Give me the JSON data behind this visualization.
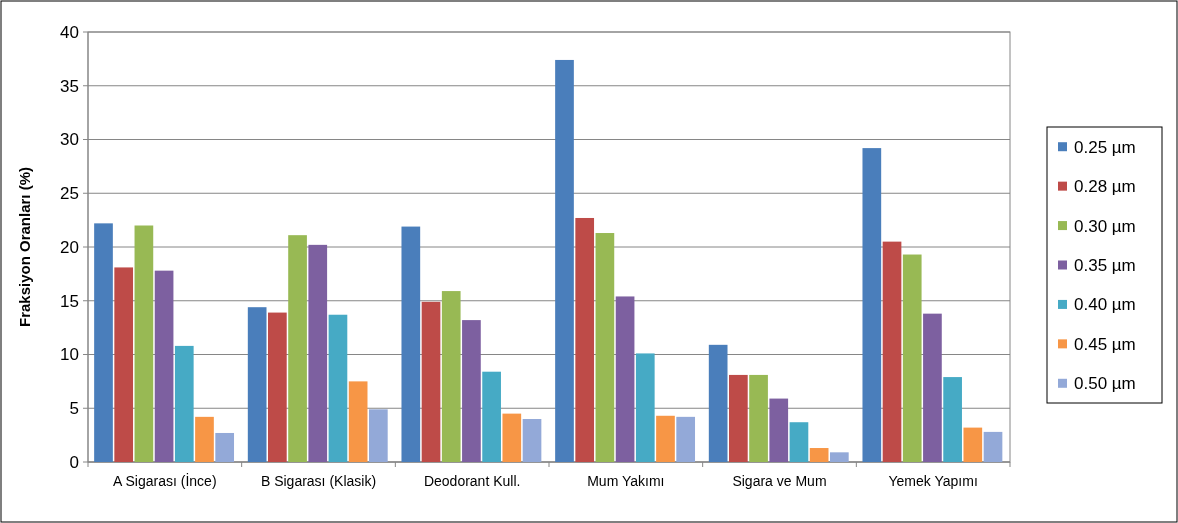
{
  "chart_data": {
    "type": "bar",
    "ylabel": "Fraksiyon Oranları (%)",
    "categories": [
      "A Sigarası (İnce)",
      "B Sigarası (Klasik)",
      "Deodorant Kull.",
      "Mum Yakımı",
      "Sigara ve Mum",
      "Yemek Yapımı"
    ],
    "series": [
      {
        "name": "0.25 µm",
        "color": "#4a7ebb",
        "values": [
          22.2,
          14.4,
          21.9,
          37.4,
          10.9,
          29.2
        ]
      },
      {
        "name": "0.28 µm",
        "color": "#be4b48",
        "values": [
          18.1,
          13.9,
          14.9,
          22.7,
          8.1,
          20.5
        ]
      },
      {
        "name": "0.30 µm",
        "color": "#98b954",
        "values": [
          22.0,
          21.1,
          15.9,
          21.3,
          8.1,
          19.3
        ]
      },
      {
        "name": "0.35 µm",
        "color": "#7d60a0",
        "values": [
          17.8,
          20.2,
          13.2,
          15.4,
          5.9,
          13.8
        ]
      },
      {
        "name": "0.40 µm",
        "color": "#46aac5",
        "values": [
          10.8,
          13.7,
          8.4,
          10.1,
          3.7,
          7.9
        ]
      },
      {
        "name": "0.45 µm",
        "color": "#f79646",
        "values": [
          4.2,
          7.5,
          4.5,
          4.3,
          1.3,
          3.2
        ]
      },
      {
        "name": "0.50 µm",
        "color": "#93a9d8",
        "values": [
          2.7,
          4.9,
          4.0,
          4.2,
          0.9,
          2.8
        ]
      }
    ],
    "ylim": [
      0,
      40
    ],
    "yticks": [
      0,
      5,
      10,
      15,
      20,
      25,
      30,
      35,
      40
    ],
    "grid": "y",
    "legend": "right"
  }
}
